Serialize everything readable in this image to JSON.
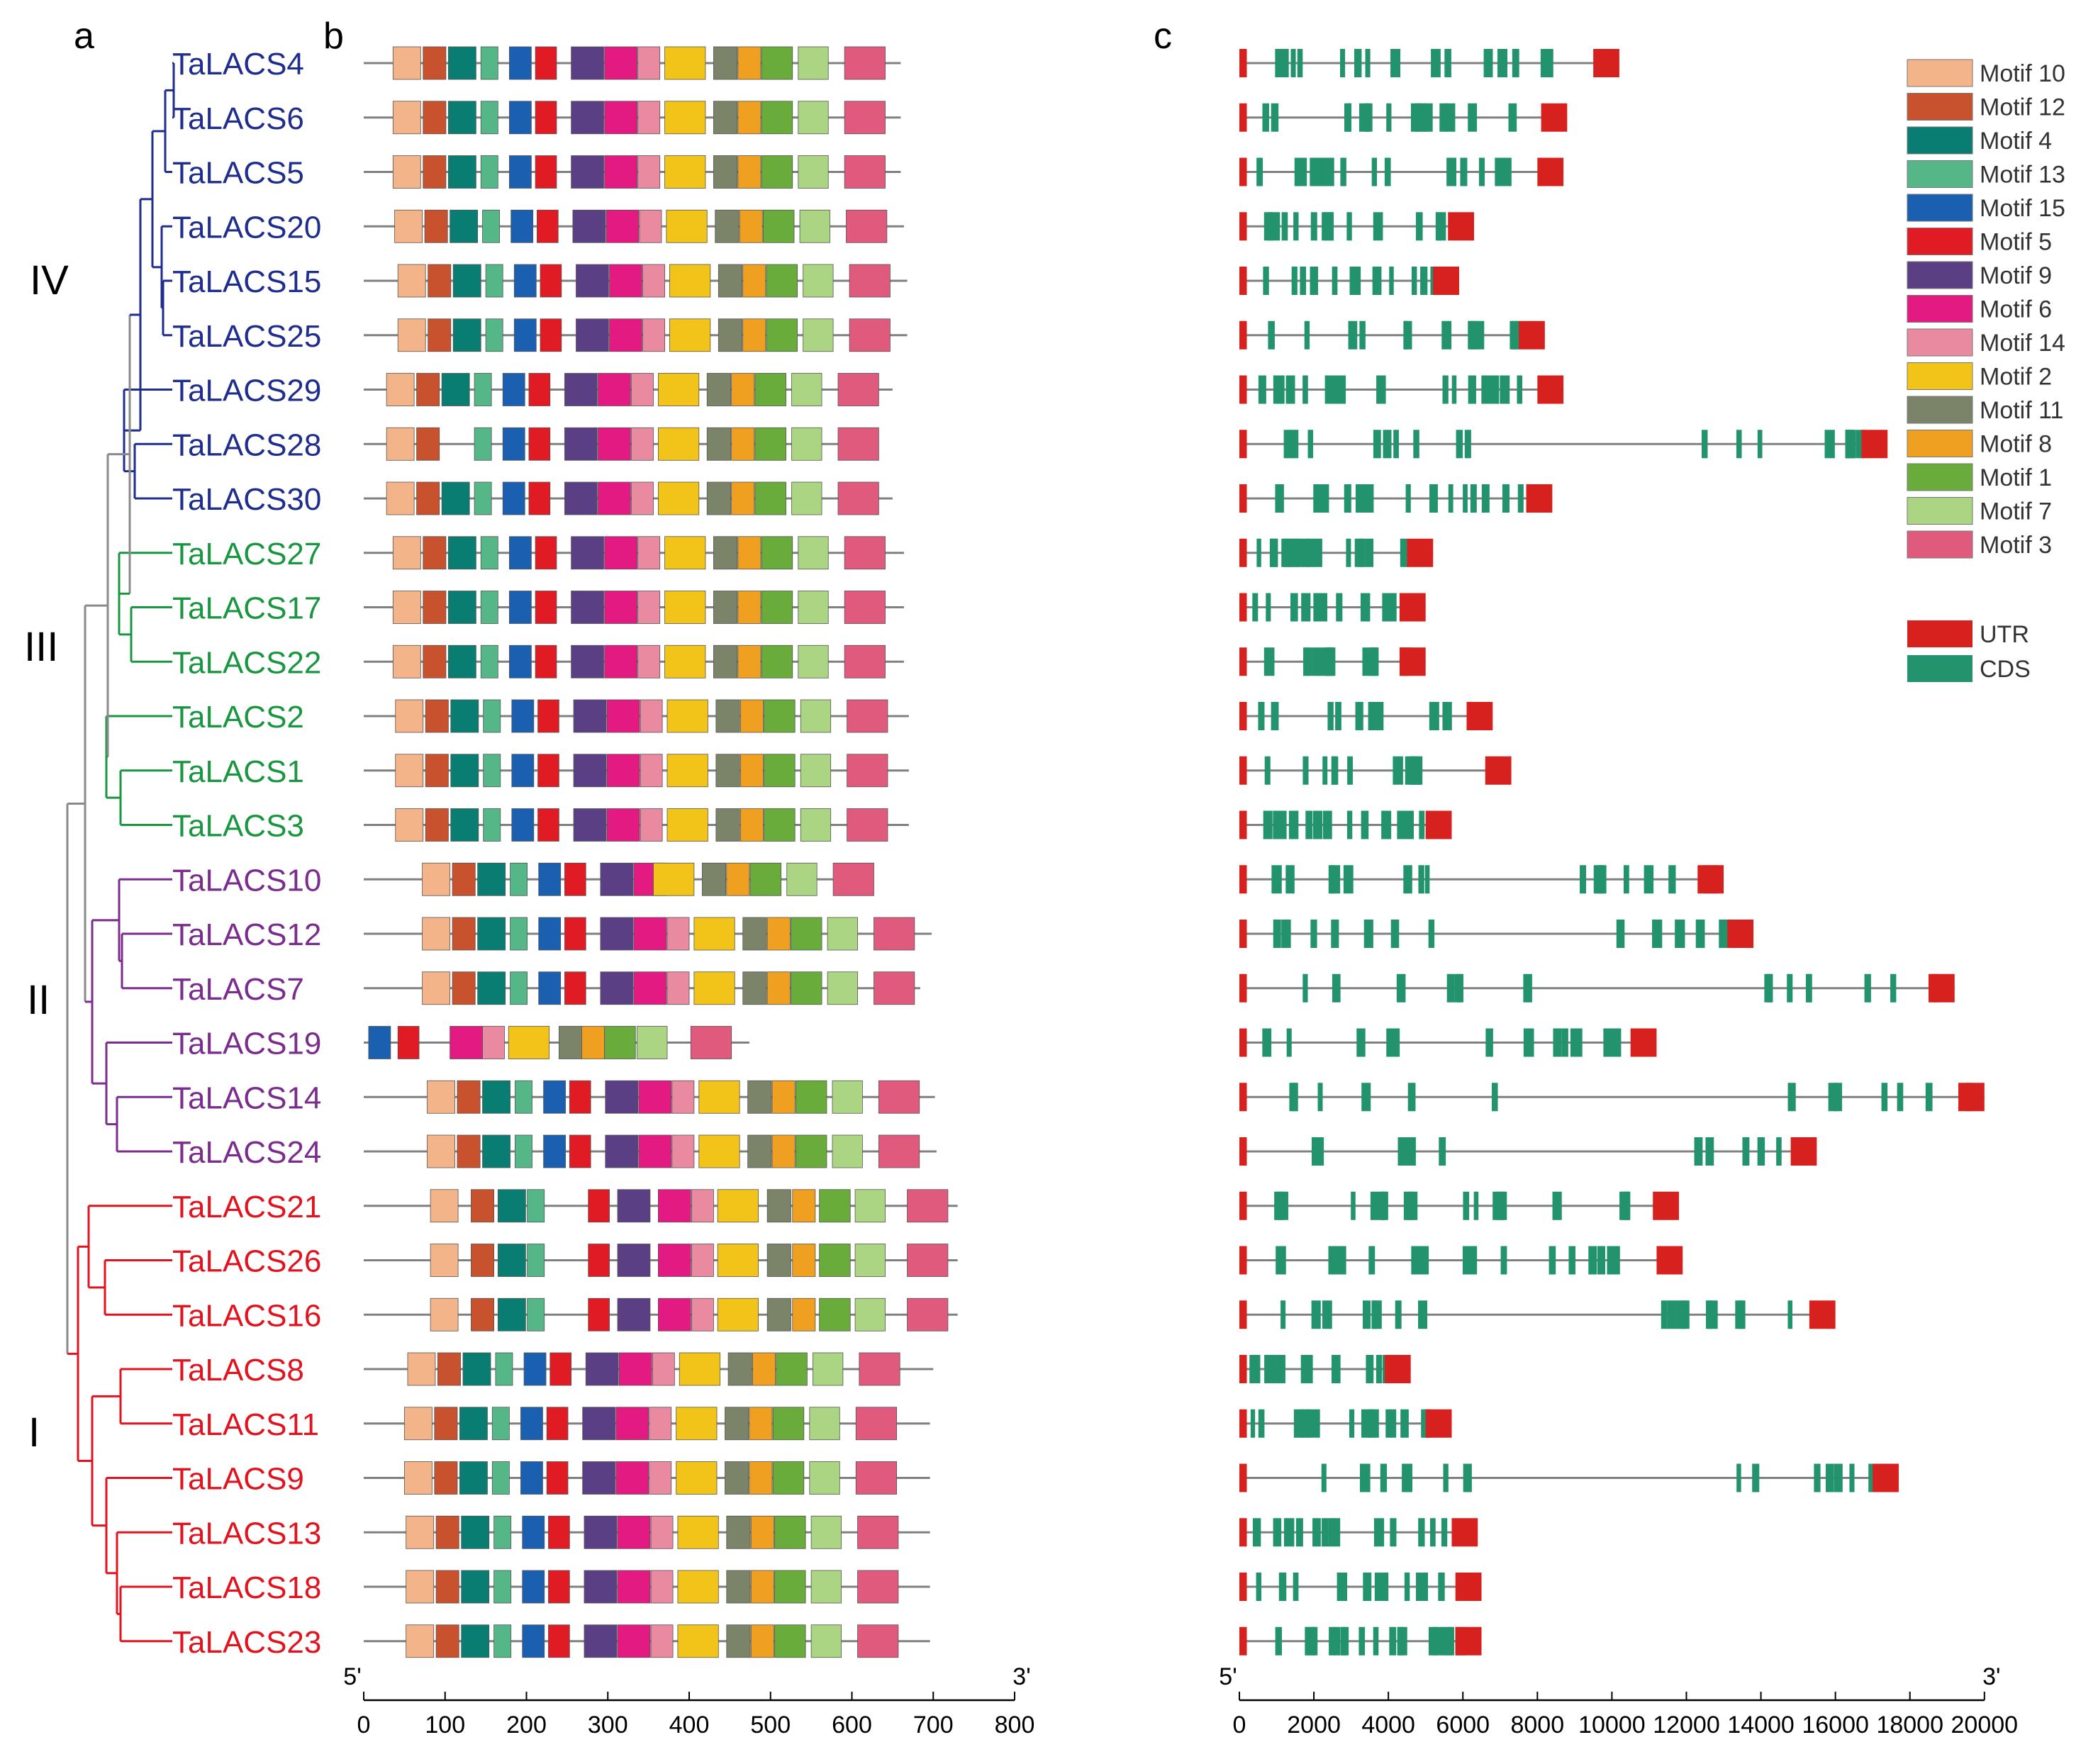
{
  "panels": {
    "a": "a",
    "b": "b",
    "c": "c"
  },
  "clades": [
    {
      "label": "IV",
      "color": "#1f2d8c",
      "members": [
        "TaLACS4",
        "TaLACS6",
        "TaLACS5",
        "TaLACS20",
        "TaLACS15",
        "TaLACS25",
        "TaLACS29",
        "TaLACS28",
        "TaLACS30"
      ]
    },
    {
      "label": "III",
      "color": "#1a9641",
      "members": [
        "TaLACS27",
        "TaLACS17",
        "TaLACS22",
        "TaLACS2",
        "TaLACS1",
        "TaLACS3"
      ]
    },
    {
      "label": "II",
      "color": "#7b2d8e",
      "members": [
        "TaLACS10",
        "TaLACS12",
        "TaLACS7",
        "TaLACS19",
        "TaLACS14",
        "TaLACS24"
      ]
    },
    {
      "label": "I",
      "color": "#e0141e",
      "members": [
        "TaLACS21",
        "TaLACS26",
        "TaLACS16",
        "TaLACS8",
        "TaLACS11",
        "TaLACS9",
        "TaLACS13",
        "TaLACS18",
        "TaLACS23"
      ]
    }
  ],
  "genes": [
    {
      "name": "TaLACS4",
      "protein_len": 660,
      "gene_len": 10200
    },
    {
      "name": "TaLACS6",
      "protein_len": 660,
      "gene_len": 8800
    },
    {
      "name": "TaLACS5",
      "protein_len": 660,
      "gene_len": 8700
    },
    {
      "name": "TaLACS20",
      "protein_len": 664,
      "gene_len": 6300
    },
    {
      "name": "TaLACS15",
      "protein_len": 668,
      "gene_len": 5900
    },
    {
      "name": "TaLACS25",
      "protein_len": 668,
      "gene_len": 8200
    },
    {
      "name": "TaLACS29",
      "protein_len": 650,
      "gene_len": 8700
    },
    {
      "name": "TaLACS28",
      "protein_len": 632,
      "gene_len": 17400
    },
    {
      "name": "TaLACS30",
      "protein_len": 650,
      "gene_len": 8400
    },
    {
      "name": "TaLACS27",
      "protein_len": 664,
      "gene_len": 5200
    },
    {
      "name": "TaLACS17",
      "protein_len": 664,
      "gene_len": 5000
    },
    {
      "name": "TaLACS22",
      "protein_len": 664,
      "gene_len": 5000
    },
    {
      "name": "TaLACS2",
      "protein_len": 670,
      "gene_len": 6800
    },
    {
      "name": "TaLACS1",
      "protein_len": 670,
      "gene_len": 7300
    },
    {
      "name": "TaLACS3",
      "protein_len": 670,
      "gene_len": 5700
    },
    {
      "name": "TaLACS10",
      "protein_len": 614,
      "gene_len": 13000
    },
    {
      "name": "TaLACS12",
      "protein_len": 698,
      "gene_len": 13800
    },
    {
      "name": "TaLACS7",
      "protein_len": 684,
      "gene_len": 19200
    },
    {
      "name": "TaLACS19",
      "protein_len": 474,
      "gene_len": 11200
    },
    {
      "name": "TaLACS14",
      "protein_len": 702,
      "gene_len": 20000
    },
    {
      "name": "TaLACS24",
      "protein_len": 704,
      "gene_len": 15500
    },
    {
      "name": "TaLACS21",
      "protein_len": 730,
      "gene_len": 11800
    },
    {
      "name": "TaLACS26",
      "protein_len": 730,
      "gene_len": 11900
    },
    {
      "name": "TaLACS16",
      "protein_len": 730,
      "gene_len": 16000
    },
    {
      "name": "TaLACS8",
      "protein_len": 700,
      "gene_len": 4600
    },
    {
      "name": "TaLACS11",
      "protein_len": 696,
      "gene_len": 5700
    },
    {
      "name": "TaLACS9",
      "protein_len": 696,
      "gene_len": 17700
    },
    {
      "name": "TaLACS13",
      "protein_len": 696,
      "gene_len": 6400
    },
    {
      "name": "TaLACS18",
      "protein_len": 696,
      "gene_len": 6500
    },
    {
      "name": "TaLACS23",
      "protein_len": 696,
      "gene_len": 6500
    }
  ],
  "motif_legend": [
    {
      "id": 10,
      "label": "Motif 10",
      "color": "#f4b48a"
    },
    {
      "id": 12,
      "label": "Motif 12",
      "color": "#c8522e"
    },
    {
      "id": 4,
      "label": "Motif 4",
      "color": "#0a7d72"
    },
    {
      "id": 13,
      "label": "Motif 13",
      "color": "#55b687"
    },
    {
      "id": 15,
      "label": "Motif 15",
      "color": "#1a5fb0"
    },
    {
      "id": 5,
      "label": "Motif 5",
      "color": "#e01b24"
    },
    {
      "id": 9,
      "label": "Motif 9",
      "color": "#5a3f85"
    },
    {
      "id": 6,
      "label": "Motif 6",
      "color": "#e31a82"
    },
    {
      "id": 14,
      "label": "Motif 14",
      "color": "#e98aa0"
    },
    {
      "id": 2,
      "label": "Motif 2",
      "color": "#f2c41a"
    },
    {
      "id": 11,
      "label": "Motif 11",
      "color": "#7b8468"
    },
    {
      "id": 8,
      "label": "Motif 8",
      "color": "#f0a020"
    },
    {
      "id": 1,
      "label": "Motif 1",
      "color": "#6aac3c"
    },
    {
      "id": 7,
      "label": "Motif 7",
      "color": "#acd583"
    },
    {
      "id": 3,
      "label": "Motif 3",
      "color": "#e05a7e"
    }
  ],
  "structure_legend": [
    {
      "label": "UTR",
      "color": "#d7211f"
    },
    {
      "label": "CDS",
      "color": "#22936c"
    }
  ],
  "motif_axis": {
    "ticks": [
      "0",
      "100",
      "200",
      "300",
      "400",
      "500",
      "600",
      "700",
      "800"
    ],
    "tick_values": [
      0,
      100,
      200,
      300,
      400,
      500,
      600,
      700,
      800
    ],
    "max": 800,
    "left_end": "5'",
    "right_end": "3'"
  },
  "gene_axis": {
    "ticks": [
      "0",
      "2000",
      "4000",
      "6000",
      "8000",
      "10000",
      "12000",
      "14000",
      "16000",
      "18000",
      "20000"
    ],
    "tick_values": [
      0,
      2000,
      4000,
      6000,
      8000,
      10000,
      12000,
      14000,
      16000,
      18000,
      20000
    ],
    "max": 20000,
    "left_end": "5'",
    "right_end": "3'"
  }
}
